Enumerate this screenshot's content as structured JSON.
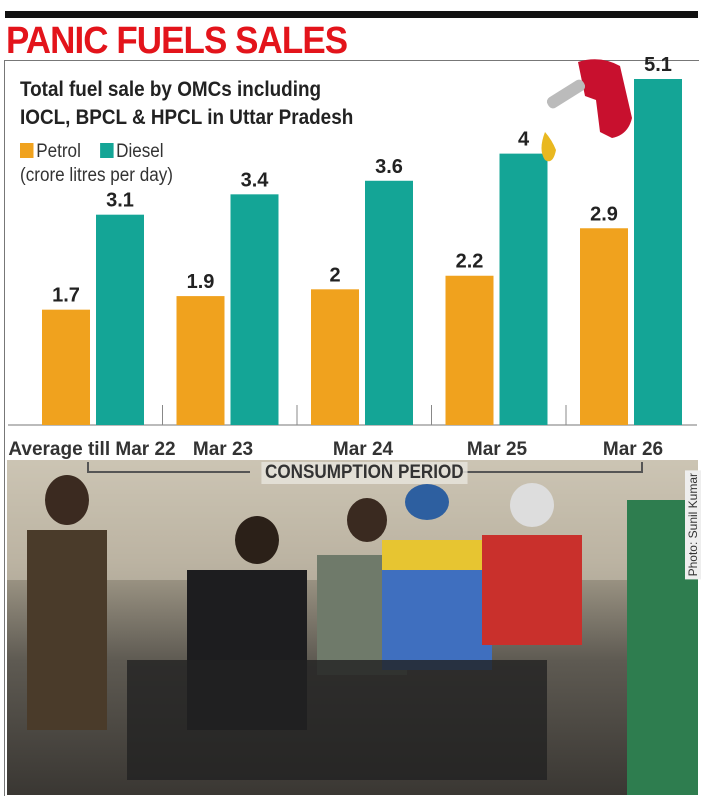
{
  "headline": "PANIC FUELS SALES",
  "chart_data": {
    "type": "bar",
    "title": "Total fuel sale by OMCs including IOCL, BPCL & HPCL in Uttar Pradesh",
    "title_line1": "Total fuel sale by OMCs including",
    "title_line2": "IOCL, BPCL & HPCL in Uttar Pradesh",
    "unit": "(crore litres per day)",
    "categories": [
      "Average till Mar 22",
      "Mar 23",
      "Mar 24",
      "Mar 25",
      "Mar 26"
    ],
    "series": [
      {
        "name": "Petrol",
        "color": "#f0a21e",
        "values": [
          1.7,
          1.9,
          2,
          2.2,
          2.9
        ]
      },
      {
        "name": "Diesel",
        "color": "#14a596",
        "values": [
          3.1,
          3.4,
          3.6,
          4,
          5.1
        ]
      }
    ],
    "xlabel": "CONSUMPTION PERIOD",
    "ylim": [
      0,
      5.1
    ],
    "grid": false,
    "legend": "top-left"
  },
  "photo": {
    "credit": "Photo: Sunil Kumar"
  },
  "colors": {
    "headline": "#e3141b",
    "nozzle": "#c8102e"
  }
}
